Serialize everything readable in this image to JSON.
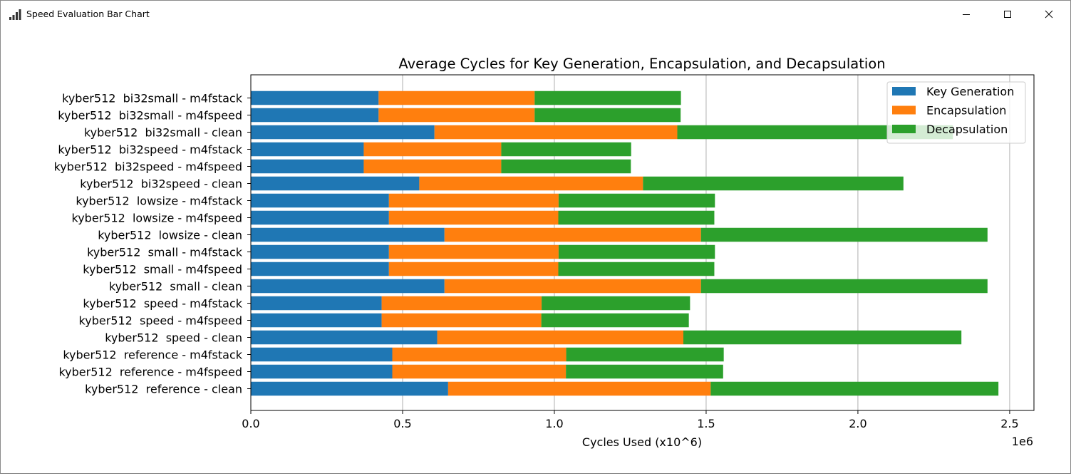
{
  "window": {
    "title": "Speed Evaluation Bar Chart",
    "app_icon": "bar-chart-icon",
    "controls": [
      "minimize-icon",
      "maximize-icon",
      "close-icon"
    ]
  },
  "chart_data": {
    "type": "bar",
    "orientation": "horizontal",
    "stacked": true,
    "title": "Average Cycles for Key Generation, Encapsulation, and Decapsulation",
    "xlabel": "Cycles Used (x10^6)",
    "ylabel": "",
    "x_offset_label": "1e6",
    "xlim": [
      0,
      2.58
    ],
    "xticks": [
      "0.0",
      "0.5",
      "1.0",
      "1.5",
      "2.0",
      "2.5"
    ],
    "xtick_values": [
      0,
      0.5,
      1.0,
      1.5,
      2.0,
      2.5
    ],
    "grid": "x-major",
    "legend_position": "top-right",
    "categories": [
      "kyber512  bi32small - m4fstack",
      "kyber512  bi32small - m4fspeed",
      "kyber512  bi32small - clean",
      "kyber512  bi32speed - m4fstack",
      "kyber512  bi32speed - m4fspeed",
      "kyber512  bi32speed - clean",
      "kyber512  lowsize - m4fstack",
      "kyber512  lowsize - m4fspeed",
      "kyber512  lowsize - clean",
      "kyber512  small - m4fstack",
      "kyber512  small - m4fspeed",
      "kyber512  small - clean",
      "kyber512  speed - m4fstack",
      "kyber512  speed - m4fspeed",
      "kyber512  speed - clean",
      "kyber512  reference - m4fstack",
      "kyber512  reference - m4fspeed",
      "kyber512  reference - clean"
    ],
    "series": [
      {
        "name": "Key Generation",
        "color": "#1f77b4",
        "values": [
          0.421,
          0.421,
          0.605,
          0.372,
          0.372,
          0.555,
          0.455,
          0.455,
          0.638,
          0.455,
          0.455,
          0.638,
          0.431,
          0.431,
          0.614,
          0.466,
          0.466,
          0.65
        ]
      },
      {
        "name": "Encapsulation",
        "color": "#ff7f0e",
        "values": [
          0.514,
          0.514,
          0.8,
          0.453,
          0.453,
          0.737,
          0.559,
          0.558,
          0.845,
          0.559,
          0.558,
          0.845,
          0.527,
          0.526,
          0.811,
          0.573,
          0.572,
          0.865
        ]
      },
      {
        "name": "Decapsulation",
        "color": "#2ca02c",
        "values": [
          0.482,
          0.481,
          0.908,
          0.428,
          0.427,
          0.858,
          0.515,
          0.514,
          0.944,
          0.515,
          0.514,
          0.944,
          0.489,
          0.486,
          0.916,
          0.519,
          0.518,
          0.948
        ]
      }
    ]
  }
}
